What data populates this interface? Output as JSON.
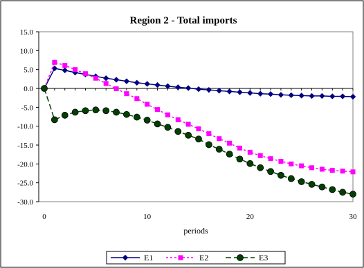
{
  "chart_data": {
    "type": "line",
    "title": "Region 2 - Total imports",
    "xlabel": "periods",
    "ylabel": "",
    "xlim": [
      0,
      30
    ],
    "ylim": [
      -30,
      15
    ],
    "xticks": [
      0,
      10,
      20,
      30
    ],
    "yticks": [
      15,
      10,
      5,
      0,
      -5,
      -10,
      -15,
      -20,
      -25,
      -30
    ],
    "ytick_labels": [
      "15.0",
      "10.0",
      "5.0",
      "0.0",
      "-5.0",
      "-10.0",
      "-15.0",
      "-20.0",
      "-25.0",
      "-30.0"
    ],
    "grid": false,
    "legend_position": "bottom",
    "x": [
      0,
      1,
      2,
      3,
      4,
      5,
      6,
      7,
      8,
      9,
      10,
      11,
      12,
      13,
      14,
      15,
      16,
      17,
      18,
      19,
      20,
      21,
      22,
      23,
      24,
      25,
      26,
      27,
      28,
      29,
      30
    ],
    "series": [
      {
        "name": "E1",
        "color": "#000080",
        "marker": "diamond",
        "dash": "solid",
        "values": [
          0,
          5.3,
          4.8,
          4.2,
          3.7,
          3.2,
          2.7,
          2.3,
          1.9,
          1.5,
          1.2,
          0.9,
          0.6,
          0.3,
          0.1,
          -0.2,
          -0.4,
          -0.6,
          -0.8,
          -1.0,
          -1.2,
          -1.4,
          -1.5,
          -1.7,
          -1.8,
          -1.9,
          -2.0,
          -2.0,
          -2.1,
          -2.1,
          -2.2
        ]
      },
      {
        "name": "E2",
        "color": "#ff00ff",
        "marker": "square",
        "dash": "dotted",
        "values": [
          0,
          6.9,
          6.1,
          5.0,
          3.9,
          2.7,
          1.3,
          -0.1,
          -1.4,
          -2.7,
          -4.2,
          -5.6,
          -7.0,
          -8.3,
          -9.5,
          -10.7,
          -12.0,
          -13.3,
          -14.5,
          -15.8,
          -16.9,
          -17.8,
          -18.6,
          -19.3,
          -20.0,
          -20.5,
          -21.0,
          -21.4,
          -21.7,
          -21.9,
          -22.1
        ]
      },
      {
        "name": "E3",
        "color": "#004000",
        "marker": "circle",
        "dash": "dashed",
        "values": [
          0,
          -8.3,
          -7.1,
          -6.3,
          -5.9,
          -5.7,
          -5.9,
          -6.3,
          -6.9,
          -7.6,
          -8.4,
          -9.4,
          -10.3,
          -11.4,
          -12.4,
          -13.4,
          -14.9,
          -16.1,
          -17.4,
          -18.7,
          -19.9,
          -21.0,
          -22.0,
          -23.0,
          -23.9,
          -24.7,
          -25.4,
          -26.1,
          -26.8,
          -27.5,
          -28.0
        ]
      }
    ]
  }
}
